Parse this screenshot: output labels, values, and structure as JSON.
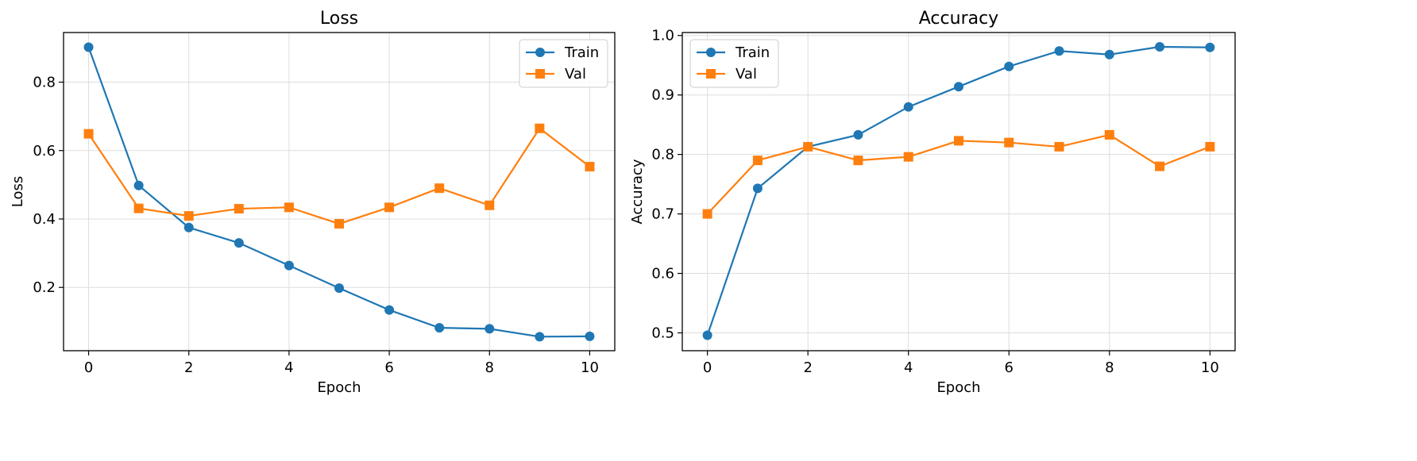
{
  "colors": {
    "train": "#1f77b4",
    "val": "#ff7f0e",
    "grid": "#dddddd",
    "axis": "#000000"
  },
  "chart_data": [
    {
      "type": "line",
      "title": "Loss",
      "xlabel": "Epoch",
      "ylabel": "Loss",
      "xlim": [
        -0.5,
        10.5
      ],
      "ylim": [
        0.015,
        0.945
      ],
      "xticks": [
        0,
        2,
        4,
        6,
        8,
        10
      ],
      "yticks": [
        0.2,
        0.4,
        0.6,
        0.8
      ],
      "yticks_labels": [
        "0.2",
        "0.4",
        "0.6",
        "0.8"
      ],
      "grid": true,
      "legend_position": "top-right",
      "x": [
        0,
        1,
        2,
        3,
        4,
        5,
        6,
        7,
        8,
        9,
        10
      ],
      "series": [
        {
          "name": "Train",
          "marker": "circle",
          "color": "#1f77b4",
          "values": [
            0.902,
            0.498,
            0.375,
            0.33,
            0.264,
            0.198,
            0.134,
            0.082,
            0.079,
            0.056,
            0.057
          ]
        },
        {
          "name": "Val",
          "marker": "square",
          "color": "#ff7f0e",
          "values": [
            0.649,
            0.431,
            0.409,
            0.43,
            0.434,
            0.386,
            0.434,
            0.49,
            0.44,
            0.665,
            0.553
          ]
        }
      ]
    },
    {
      "type": "line",
      "title": "Accuracy",
      "xlabel": "Epoch",
      "ylabel": "Accuracy",
      "xlim": [
        -0.5,
        10.5
      ],
      "ylim": [
        0.47,
        1.005
      ],
      "xticks": [
        0,
        2,
        4,
        6,
        8,
        10
      ],
      "yticks": [
        0.5,
        0.6,
        0.7,
        0.8,
        0.9,
        1.0
      ],
      "yticks_labels": [
        "0.5",
        "0.6",
        "0.7",
        "0.8",
        "0.9",
        "1.0"
      ],
      "grid": true,
      "legend_position": "top-left",
      "x": [
        0,
        1,
        2,
        3,
        4,
        5,
        6,
        7,
        8,
        9,
        10
      ],
      "series": [
        {
          "name": "Train",
          "marker": "circle",
          "color": "#1f77b4",
          "values": [
            0.496,
            0.743,
            0.813,
            0.833,
            0.88,
            0.914,
            0.948,
            0.974,
            0.968,
            0.981,
            0.98
          ]
        },
        {
          "name": "Val",
          "marker": "square",
          "color": "#ff7f0e",
          "values": [
            0.7,
            0.79,
            0.813,
            0.79,
            0.796,
            0.823,
            0.82,
            0.813,
            0.833,
            0.78,
            0.813
          ]
        }
      ]
    }
  ]
}
